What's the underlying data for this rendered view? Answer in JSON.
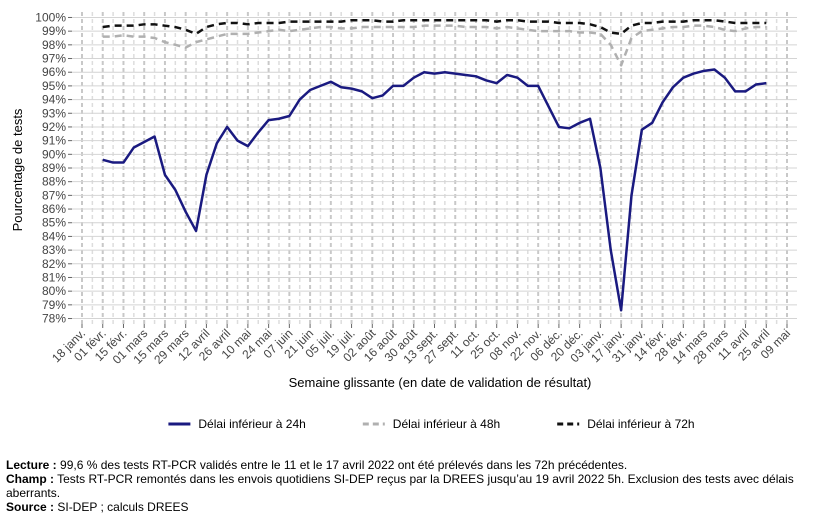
{
  "chart_data": {
    "type": "line",
    "y_label": "Pourcentage de tests",
    "x_label": "Semaine glissante (en date de validation de résultat)",
    "categories": [
      "18 janv.",
      null,
      "01 févr.",
      null,
      "15 févr.",
      null,
      "01 mars",
      null,
      "15 mars",
      null,
      "29 mars",
      null,
      "12 avril",
      null,
      "26 avril",
      null,
      "10 mai",
      null,
      "24 mai",
      null,
      "07 juin",
      null,
      "21 juin",
      null,
      "05 juil.",
      null,
      "19 juil.",
      null,
      "02 août",
      null,
      "16 août",
      null,
      "30 août",
      null,
      "13 sept.",
      null,
      "27 sept.",
      null,
      "11 oct.",
      null,
      "25 oct.",
      null,
      "08 nov.",
      null,
      "22 nov.",
      null,
      "06 déc.",
      null,
      "20 déc.",
      null,
      "03 janv.",
      null,
      "17 janv.",
      null,
      "31 janv.",
      null,
      "14 févr.",
      null,
      "28 févr.",
      null,
      "14 mars",
      null,
      "28 mars",
      null,
      "11 avril",
      null,
      "25 avril",
      null,
      "09 mai"
    ],
    "series": [
      {
        "name": "Délai inférieur à 24h",
        "color": "#1a1a80",
        "dash": "solid",
        "values": [
          null,
          null,
          89.6,
          89.4,
          89.4,
          90.5,
          90.9,
          91.3,
          88.5,
          87.4,
          85.8,
          84.4,
          88.5,
          90.8,
          92.0,
          91.0,
          90.6,
          91.6,
          92.5,
          92.6,
          92.8,
          94.0,
          94.7,
          95.0,
          95.3,
          94.9,
          94.8,
          94.6,
          94.1,
          94.3,
          95.0,
          95.0,
          95.6,
          96.0,
          95.9,
          96.0,
          95.9,
          95.8,
          95.7,
          95.4,
          95.2,
          95.8,
          95.6,
          95.0,
          95.0,
          93.5,
          92.0,
          91.9,
          92.3,
          92.6,
          89.0,
          83.0,
          78.6,
          87.0,
          91.8,
          92.3,
          93.8,
          94.9,
          95.6,
          95.9,
          96.1,
          96.2,
          95.6,
          94.6,
          94.6,
          95.1,
          95.2,
          null,
          null
        ]
      },
      {
        "name": "Délai inférieur à 48h",
        "color": "#b0b0b0",
        "dash": "dashed",
        "values": [
          null,
          null,
          98.6,
          98.6,
          98.7,
          98.6,
          98.6,
          98.5,
          98.2,
          98.0,
          97.8,
          98.2,
          98.4,
          98.6,
          98.8,
          98.8,
          98.8,
          98.9,
          99.0,
          99.1,
          99.0,
          99.1,
          99.2,
          99.3,
          99.3,
          99.2,
          99.2,
          99.3,
          99.3,
          99.3,
          99.3,
          99.3,
          99.3,
          99.4,
          99.4,
          99.4,
          99.4,
          99.3,
          99.3,
          99.3,
          99.2,
          99.3,
          99.2,
          99.1,
          99.0,
          99.0,
          99.0,
          99.0,
          98.9,
          98.9,
          98.8,
          98.0,
          96.5,
          98.5,
          99.0,
          99.1,
          99.2,
          99.3,
          99.3,
          99.4,
          99.4,
          99.3,
          99.1,
          99.0,
          99.2,
          99.3,
          99.3,
          null,
          null
        ]
      },
      {
        "name": "Délai inférieur à 72h",
        "color": "#111111",
        "dash": "dashed",
        "values": [
          null,
          null,
          99.3,
          99.4,
          99.4,
          99.4,
          99.5,
          99.5,
          99.4,
          99.3,
          99.1,
          98.8,
          99.3,
          99.5,
          99.6,
          99.6,
          99.5,
          99.6,
          99.6,
          99.6,
          99.7,
          99.7,
          99.7,
          99.7,
          99.7,
          99.7,
          99.8,
          99.8,
          99.8,
          99.7,
          99.7,
          99.8,
          99.8,
          99.8,
          99.8,
          99.8,
          99.8,
          99.8,
          99.8,
          99.8,
          99.7,
          99.8,
          99.8,
          99.7,
          99.7,
          99.7,
          99.6,
          99.6,
          99.6,
          99.5,
          99.3,
          98.9,
          98.8,
          99.4,
          99.6,
          99.6,
          99.7,
          99.7,
          99.7,
          99.8,
          99.8,
          99.8,
          99.7,
          99.6,
          99.6,
          99.6,
          99.6,
          null,
          null
        ]
      }
    ],
    "ylim": [
      77.6,
      100.4
    ],
    "yticks": [
      {
        "value": 78,
        "label": "78%"
      },
      {
        "value": 79,
        "label": "79%"
      },
      {
        "value": 80,
        "label": "80%"
      },
      {
        "value": 81,
        "label": "81%"
      },
      {
        "value": 82,
        "label": "82%"
      },
      {
        "value": 83,
        "label": "83%"
      },
      {
        "value": 84,
        "label": "84%"
      },
      {
        "value": 85,
        "label": "85%"
      },
      {
        "value": 86,
        "label": "86%"
      },
      {
        "value": 87,
        "label": "87%"
      },
      {
        "value": 88,
        "label": "88%"
      },
      {
        "value": 89,
        "label": "89%"
      },
      {
        "value": 90,
        "label": "90%"
      },
      {
        "value": 91,
        "label": "91%"
      },
      {
        "value": 92,
        "label": "92%"
      },
      {
        "value": 93,
        "label": "93%"
      },
      {
        "value": 94,
        "label": "94%"
      },
      {
        "value": 95,
        "label": "95%"
      },
      {
        "value": 96,
        "label": "96%"
      },
      {
        "value": 97,
        "label": "97%"
      },
      {
        "value": 98,
        "label": "98%"
      },
      {
        "value": 99,
        "label": "99%"
      },
      {
        "value": 100,
        "label": "100%"
      }
    ],
    "grid": true,
    "legend": "bottom"
  },
  "notes": [
    {
      "label": "Lecture :",
      "text": " 99,6 % des tests RT-PCR validés entre le 11 et le 17 avril 2022 ont été prélevés dans les 72h précédentes."
    },
    {
      "label": "Champ :",
      "text": " Tests RT-PCR remontés dans les envois quotidiens SI-DEP reçus par la DREES jusqu’au 19 avril 2022 5h. Exclusion des tests avec délais aberrants."
    },
    {
      "label": "Source :",
      "text": " SI-DEP ; calculs DREES"
    }
  ]
}
